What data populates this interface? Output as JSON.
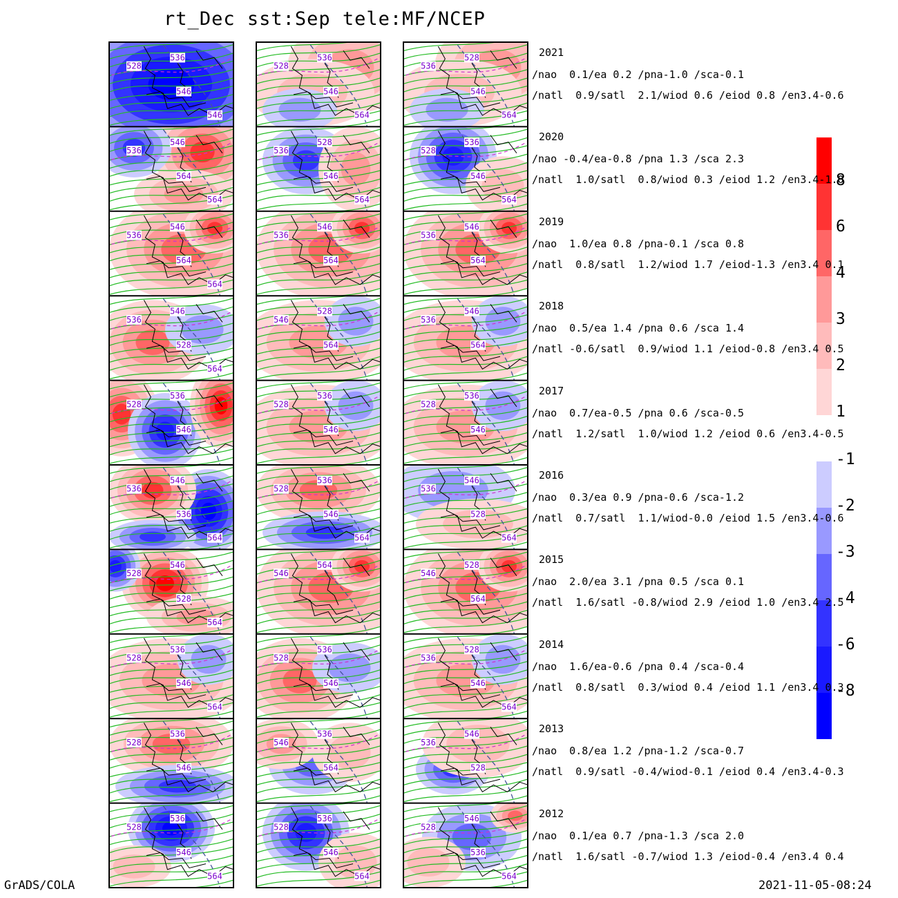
{
  "title": "rt_Dec  sst:Sep  tele:MF/NCEP",
  "footer_left": "GrADS/COLA",
  "footer_right": "2021-11-05-08:24",
  "colorbar_positive": {
    "labels": [
      "8",
      "6",
      "4",
      "3",
      "2",
      "1"
    ],
    "colors": [
      "#ff0000",
      "#ff3333",
      "#ff6666",
      "#ff9999",
      "#ffbbbb",
      "#ffd6d6"
    ]
  },
  "colorbar_negative": {
    "labels": [
      "-1",
      "-2",
      "-3",
      "-4",
      "-6",
      "-8"
    ],
    "colors": [
      "#ccccff",
      "#9999ff",
      "#6666ff",
      "#3333ff",
      "#1a1aff",
      "#0000ff"
    ]
  },
  "rows": [
    {
      "year": "2021",
      "line1": "/nao  0.1/ea 0.2 /pna-1.0 /sca-0.1",
      "line2": "/natl  0.9/satl  2.1/wiod 0.6 /eiod 0.8 /en3.4-0.6",
      "contour_labels": [
        [
          "528",
          "536",
          "546",
          "546"
        ],
        [
          "528",
          "536",
          "546",
          "564"
        ],
        [
          "536",
          "528",
          "546",
          "564"
        ]
      ]
    },
    {
      "year": "2020",
      "line1": "/nao -0.4/ea-0.8 /pna 1.3 /sca 2.3",
      "line2": "/natl  1.0/satl  0.8/wiod 0.3 /eiod 1.2 /en3.4-1.0",
      "contour_labels": [
        [
          "536",
          "546",
          "564",
          "564"
        ],
        [
          "536",
          "528",
          "546",
          "564"
        ],
        [
          "528",
          "536",
          "546",
          "564"
        ]
      ]
    },
    {
      "year": "2019",
      "line1": "/nao  1.0/ea 0.8 /pna-0.1 /sca 0.8",
      "line2": "/natl  0.8/satl  1.2/wiod 1.7 /eiod-1.3 /en3.4 0.1",
      "contour_labels": [
        [
          "536",
          "546",
          "564",
          "564"
        ],
        [
          "536",
          "546",
          "564"
        ],
        [
          "536",
          "546",
          "564"
        ]
      ]
    },
    {
      "year": "2018",
      "line1": "/nao  0.5/ea 1.4 /pna 0.6 /sca 1.4",
      "line2": "/natl -0.6/satl  0.9/wiod 1.1 /eiod-0.8 /en3.4 0.5",
      "contour_labels": [
        [
          "536",
          "546",
          "528",
          "564"
        ],
        [
          "546",
          "528",
          "564"
        ],
        [
          "536",
          "546",
          "564"
        ]
      ]
    },
    {
      "year": "2017",
      "line1": "/nao  0.7/ea-0.5 /pna 0.6 /sca-0.5",
      "line2": "/natl  1.2/satl  1.0/wiod 1.2 /eiod 0.6 /en3.4-0.5",
      "contour_labels": [
        [
          "528",
          "536",
          "546"
        ],
        [
          "528",
          "536",
          "546"
        ],
        [
          "528",
          "536",
          "546"
        ]
      ]
    },
    {
      "year": "2016",
      "line1": "/nao  0.3/ea 0.9 /pna-0.6 /sca-1.2",
      "line2": "/natl  0.7/satl  1.1/wiod-0.0 /eiod 1.5 /en3.4-0.6",
      "contour_labels": [
        [
          "536",
          "546",
          "536",
          "564"
        ],
        [
          "528",
          "536",
          "546",
          "564"
        ],
        [
          "536",
          "546",
          "528",
          "564"
        ]
      ]
    },
    {
      "year": "2015",
      "line1": "/nao  2.0/ea 3.1 /pna 0.5 /sca 0.1",
      "line2": "/natl  1.6/satl -0.8/wiod 2.9 /eiod 1.0 /en3.4 2.5",
      "contour_labels": [
        [
          "528",
          "546",
          "528",
          "564"
        ],
        [
          "546",
          "564"
        ],
        [
          "546",
          "528",
          "564"
        ]
      ]
    },
    {
      "year": "2014",
      "line1": "/nao  1.6/ea-0.6 /pna 0.4 /sca-0.4",
      "line2": "/natl  0.8/satl  0.3/wiod 0.4 /eiod 1.1 /en3.4 0.3",
      "contour_labels": [
        [
          "528",
          "536",
          "546",
          "564"
        ],
        [
          "528",
          "536",
          "546"
        ],
        [
          "536",
          "528",
          "546",
          "564"
        ]
      ]
    },
    {
      "year": "2013",
      "line1": "/nao  0.8/ea 1.2 /pna-1.2 /sca-0.7",
      "line2": "/natl  0.9/satl -0.4/wiod-0.1 /eiod 0.4 /en3.4-0.3",
      "contour_labels": [
        [
          "528",
          "536",
          "546"
        ],
        [
          "546",
          "536",
          "564"
        ],
        [
          "536",
          "546",
          "528"
        ]
      ]
    },
    {
      "year": "2012",
      "line1": "/nao  0.1/ea 0.7 /pna-1.3 /sca 2.0",
      "line2": "/natl  1.6/satl -0.7/wiod 1.3 /eiod-0.4 /en3.4 0.4",
      "contour_labels": [
        [
          "528",
          "536",
          "546",
          "564"
        ],
        [
          "528",
          "536",
          "546",
          "564"
        ],
        [
          "528",
          "546",
          "536",
          "564"
        ]
      ]
    }
  ],
  "panels": [
    [
      "neg_full",
      "pos_right",
      "pos_right"
    ],
    [
      "mix_warm_east",
      "mix_cold_center",
      "cold_center"
    ],
    [
      "warm",
      "warm",
      "warm"
    ],
    [
      "warm_west",
      "warm_light",
      "warm_light"
    ],
    [
      "warm_west_cold_center",
      "warm_light",
      "warm_light"
    ],
    [
      "cold_east",
      "warm_cold_south",
      "light"
    ],
    [
      "hot_center",
      "warm",
      "warm"
    ],
    [
      "warm_light",
      "warm_west",
      "warm_light"
    ],
    [
      "warm_cold_south",
      "cold_south",
      "cold_west"
    ],
    [
      "cold_north",
      "cold_center",
      "cold_light"
    ]
  ]
}
